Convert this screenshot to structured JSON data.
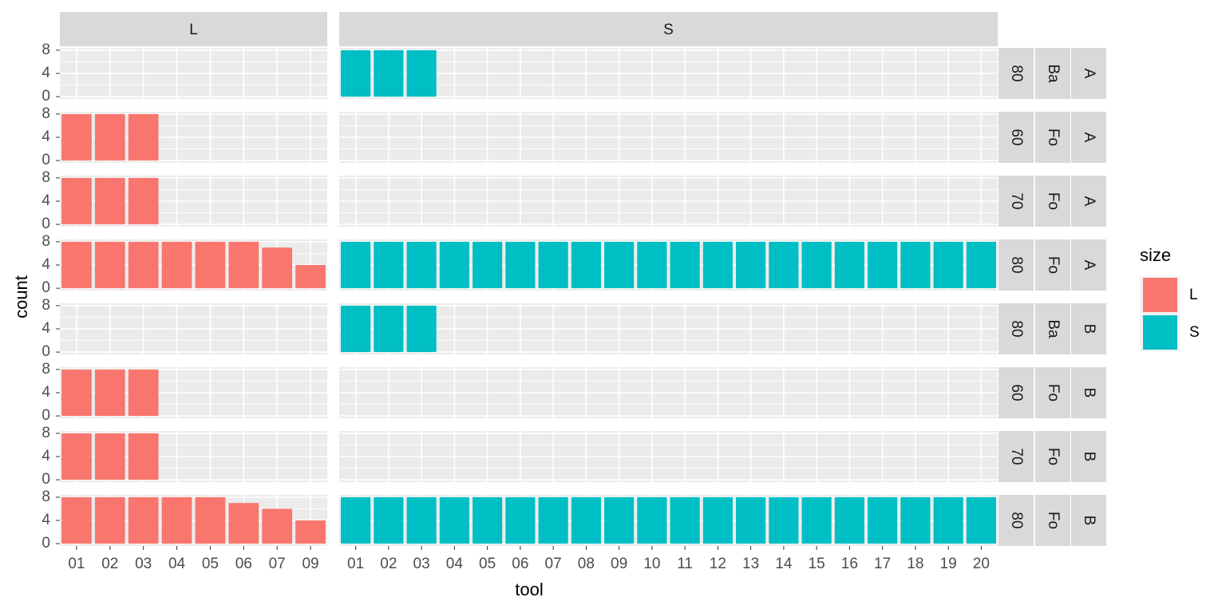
{
  "chart_data": {
    "type": "bar",
    "x_label": "tool",
    "y_label": "count",
    "legend_title": "size",
    "series": [
      {
        "name": "L",
        "color": "#F8766D"
      },
      {
        "name": "S",
        "color": "#00BFC4"
      }
    ],
    "ylim": [
      -0.4,
      8.4
    ],
    "yticks": [
      0,
      4,
      8
    ],
    "grid": true,
    "facet_columns": [
      {
        "label": "L",
        "categories": [
          "01",
          "02",
          "03",
          "04",
          "05",
          "06",
          "07",
          "09"
        ]
      },
      {
        "label": "S",
        "categories": [
          "01",
          "02",
          "03",
          "04",
          "05",
          "06",
          "07",
          "08",
          "09",
          "10",
          "11",
          "12",
          "13",
          "14",
          "15",
          "16",
          "17",
          "18",
          "19",
          "20"
        ]
      }
    ],
    "facet_rows": [
      {
        "labels": [
          "80",
          "Ba",
          "A"
        ],
        "values": [
          [
            null,
            null,
            null,
            null,
            null,
            null,
            null,
            null
          ],
          [
            8,
            8,
            8,
            null,
            null,
            null,
            null,
            null,
            null,
            null,
            null,
            null,
            null,
            null,
            null,
            null,
            null,
            null,
            null,
            null
          ]
        ]
      },
      {
        "labels": [
          "60",
          "Fo",
          "A"
        ],
        "values": [
          [
            8,
            8,
            8,
            null,
            null,
            null,
            null,
            null
          ],
          [
            null,
            null,
            null,
            null,
            null,
            null,
            null,
            null,
            null,
            null,
            null,
            null,
            null,
            null,
            null,
            null,
            null,
            null,
            null,
            null
          ]
        ]
      },
      {
        "labels": [
          "70",
          "Fo",
          "A"
        ],
        "values": [
          [
            8,
            8,
            8,
            null,
            null,
            null,
            null,
            null
          ],
          [
            null,
            null,
            null,
            null,
            null,
            null,
            null,
            null,
            null,
            null,
            null,
            null,
            null,
            null,
            null,
            null,
            null,
            null,
            null,
            null
          ]
        ]
      },
      {
        "labels": [
          "80",
          "Fo",
          "A"
        ],
        "values": [
          [
            8,
            8,
            8,
            8,
            8,
            8,
            7,
            4
          ],
          [
            8,
            8,
            8,
            8,
            8,
            8,
            8,
            8,
            8,
            8,
            8,
            8,
            8,
            8,
            8,
            8,
            8,
            8,
            8,
            8
          ]
        ]
      },
      {
        "labels": [
          "80",
          "Ba",
          "B"
        ],
        "values": [
          [
            null,
            null,
            null,
            null,
            null,
            null,
            null,
            null
          ],
          [
            8,
            8,
            8,
            null,
            null,
            null,
            null,
            null,
            null,
            null,
            null,
            null,
            null,
            null,
            null,
            null,
            null,
            null,
            null,
            null
          ]
        ]
      },
      {
        "labels": [
          "60",
          "Fo",
          "B"
        ],
        "values": [
          [
            8,
            8,
            8,
            null,
            null,
            null,
            null,
            null
          ],
          [
            null,
            null,
            null,
            null,
            null,
            null,
            null,
            null,
            null,
            null,
            null,
            null,
            null,
            null,
            null,
            null,
            null,
            null,
            null,
            null
          ]
        ]
      },
      {
        "labels": [
          "70",
          "Fo",
          "B"
        ],
        "values": [
          [
            8,
            8,
            8,
            null,
            null,
            null,
            null,
            null
          ],
          [
            null,
            null,
            null,
            null,
            null,
            null,
            null,
            null,
            null,
            null,
            null,
            null,
            null,
            null,
            null,
            null,
            null,
            null,
            null,
            null
          ]
        ]
      },
      {
        "labels": [
          "80",
          "Fo",
          "B"
        ],
        "values": [
          [
            8,
            8,
            8,
            8,
            8,
            7,
            6,
            4
          ],
          [
            8,
            8,
            8,
            8,
            8,
            8,
            8,
            8,
            8,
            8,
            8,
            8,
            8,
            8,
            8,
            8,
            8,
            8,
            8,
            8
          ]
        ]
      }
    ]
  }
}
